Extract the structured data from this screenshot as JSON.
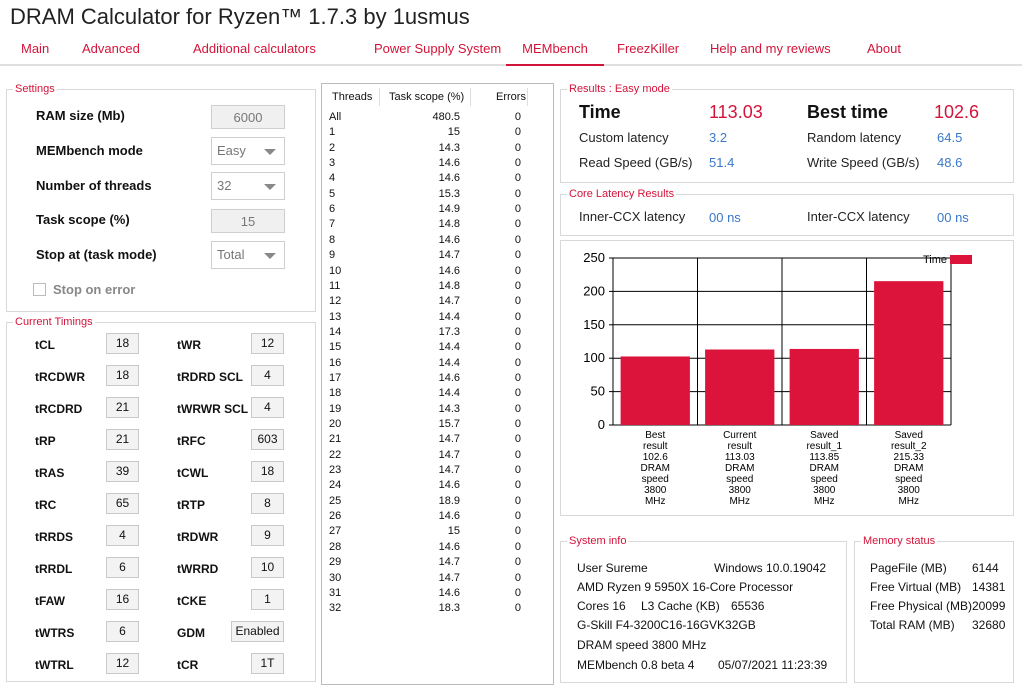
{
  "app": {
    "title": "DRAM Calculator for Ryzen™ 1.7.3 by 1usmus"
  },
  "menu": [
    "Main",
    "Advanced",
    "Additional calculators",
    "Power Supply System",
    "MEMbench",
    "FreezKiller",
    "Help and my reviews",
    "About"
  ],
  "settings": {
    "title": "Settings",
    "ram_label": "RAM size (Mb)",
    "ram_value": "6000",
    "mode_label": "MEMbench mode",
    "mode_value": "Easy",
    "threads_label": "Number of threads",
    "threads_value": "32",
    "scope_label": "Task scope (%)",
    "scope_value": "15",
    "stop_label": "Stop at (task mode)",
    "stop_value": "Total",
    "stop_error_label": "Stop on error"
  },
  "timings": {
    "title": "Current Timings",
    "left": [
      [
        "tCL",
        "18"
      ],
      [
        "tRCDWR",
        "18"
      ],
      [
        "tRCDRD",
        "21"
      ],
      [
        "tRP",
        "21"
      ],
      [
        "tRAS",
        "39"
      ],
      [
        "tRC",
        "65"
      ],
      [
        "tRRDS",
        "4"
      ],
      [
        "tRRDL",
        "6"
      ],
      [
        "tFAW",
        "16"
      ],
      [
        "tWTRS",
        "6"
      ],
      [
        "tWTRL",
        "12"
      ]
    ],
    "right": [
      [
        "tWR",
        "12"
      ],
      [
        "tRDRD SCL",
        "4"
      ],
      [
        "tWRWR SCL",
        "4"
      ],
      [
        "tRFC",
        "603"
      ],
      [
        "tCWL",
        "18"
      ],
      [
        "tRTP",
        "8"
      ],
      [
        "tRDWR",
        "9"
      ],
      [
        "tWRRD",
        "10"
      ],
      [
        "tCKE",
        "1"
      ],
      [
        "GDM",
        "Enabled"
      ],
      [
        "tCR",
        "1T"
      ]
    ]
  },
  "threads_table": {
    "headers": [
      "Threads",
      "Task scope (%)",
      "Errors"
    ],
    "rows": [
      [
        "All",
        "480.5",
        "0"
      ],
      [
        "1",
        "15",
        "0"
      ],
      [
        "2",
        "14.3",
        "0"
      ],
      [
        "3",
        "14.6",
        "0"
      ],
      [
        "4",
        "14.6",
        "0"
      ],
      [
        "5",
        "15.3",
        "0"
      ],
      [
        "6",
        "14.9",
        "0"
      ],
      [
        "7",
        "14.8",
        "0"
      ],
      [
        "8",
        "14.6",
        "0"
      ],
      [
        "9",
        "14.7",
        "0"
      ],
      [
        "10",
        "14.6",
        "0"
      ],
      [
        "11",
        "14.8",
        "0"
      ],
      [
        "12",
        "14.7",
        "0"
      ],
      [
        "13",
        "14.4",
        "0"
      ],
      [
        "14",
        "17.3",
        "0"
      ],
      [
        "15",
        "14.4",
        "0"
      ],
      [
        "16",
        "14.4",
        "0"
      ],
      [
        "17",
        "14.6",
        "0"
      ],
      [
        "18",
        "14.4",
        "0"
      ],
      [
        "19",
        "14.3",
        "0"
      ],
      [
        "20",
        "15.7",
        "0"
      ],
      [
        "21",
        "14.7",
        "0"
      ],
      [
        "22",
        "14.7",
        "0"
      ],
      [
        "23",
        "14.7",
        "0"
      ],
      [
        "24",
        "14.6",
        "0"
      ],
      [
        "25",
        "18.9",
        "0"
      ],
      [
        "26",
        "14.6",
        "0"
      ],
      [
        "27",
        "15",
        "0"
      ],
      [
        "28",
        "14.6",
        "0"
      ],
      [
        "29",
        "14.7",
        "0"
      ],
      [
        "30",
        "14.7",
        "0"
      ],
      [
        "31",
        "14.6",
        "0"
      ],
      [
        "32",
        "18.3",
        "0"
      ]
    ]
  },
  "results": {
    "title": "Results : Easy mode",
    "time_label": "Time",
    "time_value": "113.03",
    "best_label": "Best time",
    "best_value": "102.6",
    "custom_label": "Custom latency",
    "custom_value": "3.2",
    "random_label": "Random latency",
    "random_value": "64.5",
    "read_label": "Read Speed (GB/s)",
    "read_value": "51.4",
    "write_label": "Write Speed (GB/s)",
    "write_value": "48.6"
  },
  "core_latency": {
    "title": "Core Latency Results",
    "inner_label": "Inner-CCX latency",
    "inner_value": "00 ns",
    "inter_label": "Inter-CCX latency",
    "inter_value": "00 ns"
  },
  "chart_data": {
    "type": "bar",
    "categories": [
      "Best result 102.6 DRAM speed 3800 MHz",
      "Current result 113.03 DRAM speed 3800 MHz",
      "Saved result_1 113.85 DRAM speed 3800 MHz",
      "Saved result_2 215.33 DRAM speed 3800 MHz"
    ],
    "category_lines": [
      [
        "Best",
        "result",
        "102.6",
        "DRAM",
        "speed",
        "3800",
        "MHz"
      ],
      [
        "Current",
        "result",
        "113.03",
        "DRAM",
        "speed",
        "3800",
        "MHz"
      ],
      [
        "Saved",
        "result_1",
        "113.85",
        "DRAM",
        "speed",
        "3800",
        "MHz"
      ],
      [
        "Saved",
        "result_2",
        "215.33",
        "DRAM",
        "speed",
        "3800",
        "MHz"
      ]
    ],
    "series": [
      {
        "name": "Time",
        "values": [
          102.6,
          113.03,
          113.85,
          215.33
        ]
      }
    ],
    "ylim": [
      0,
      250
    ],
    "yticks": [
      "0",
      "50",
      "100",
      "150",
      "200",
      "250"
    ],
    "grid": true,
    "legend": "top-right",
    "color": "#dc143c"
  },
  "system_info": {
    "title": "System info",
    "user": "User Sureme",
    "os": "Windows 10.0.19042",
    "cpu": "AMD Ryzen 9 5950X 16-Core Processor",
    "cores": "Cores 16",
    "l3_label": "L3 Cache (KB)",
    "l3_value": "65536",
    "memory": "G-Skill F4-3200C16-16GVK32GB",
    "dram": "DRAM speed 3800 MHz",
    "bench": "MEMbench 0.8 beta 4",
    "date": "05/07/2021 11:23:39"
  },
  "memory_status": {
    "title": "Memory status",
    "rows": [
      [
        "PageFile (MB)",
        "6144"
      ],
      [
        "Free Virtual (MB)",
        "14381"
      ],
      [
        "Free Physical (MB)",
        "20099"
      ],
      [
        "Total RAM (MB)",
        "32680"
      ]
    ]
  }
}
